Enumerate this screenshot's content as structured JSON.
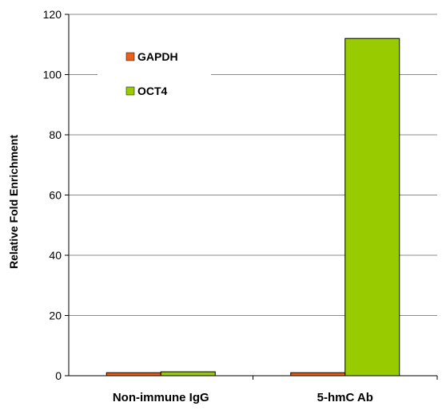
{
  "chart_data": {
    "type": "bar",
    "title": "",
    "xlabel": "",
    "ylabel": "Relative Fold Enrichment",
    "categories": [
      "Non-immune IgG",
      "5-hmC Ab"
    ],
    "series": [
      {
        "name": "GAPDH",
        "values": [
          1.0,
          1.0
        ],
        "color": "#e8601c"
      },
      {
        "name": "OCT4",
        "values": [
          1.3,
          112
        ],
        "color": "#99cc00"
      }
    ],
    "ylim": [
      0,
      120
    ],
    "yticks": [
      "0",
      "20",
      "40",
      "60",
      "80",
      "100",
      "120"
    ],
    "grid": true,
    "legend": "top-left"
  }
}
